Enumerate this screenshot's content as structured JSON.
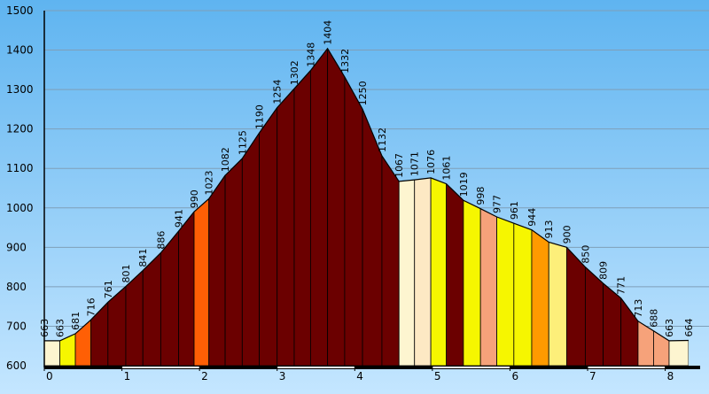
{
  "chart_data": {
    "type": "area",
    "title": "",
    "xlabel": "",
    "ylabel": "",
    "xlim": [
      0,
      8.45
    ],
    "ylim": [
      600,
      1500
    ],
    "y_ticks": [
      600,
      700,
      800,
      900,
      1000,
      1100,
      1200,
      1300,
      1400,
      1500
    ],
    "x_ticks": [
      0,
      1,
      2,
      3,
      4,
      5,
      6,
      7,
      8
    ],
    "grid": true,
    "points": [
      {
        "x": 0.0,
        "y": 663
      },
      {
        "x": 0.2,
        "y": 663
      },
      {
        "x": 0.4,
        "y": 681
      },
      {
        "x": 0.6,
        "y": 716
      },
      {
        "x": 0.82,
        "y": 761
      },
      {
        "x": 1.05,
        "y": 801
      },
      {
        "x": 1.27,
        "y": 841
      },
      {
        "x": 1.5,
        "y": 886
      },
      {
        "x": 1.73,
        "y": 941
      },
      {
        "x": 1.93,
        "y": 990
      },
      {
        "x": 2.12,
        "y": 1023
      },
      {
        "x": 2.33,
        "y": 1082
      },
      {
        "x": 2.55,
        "y": 1125
      },
      {
        "x": 2.77,
        "y": 1190
      },
      {
        "x": 3.0,
        "y": 1254
      },
      {
        "x": 3.22,
        "y": 1302
      },
      {
        "x": 3.43,
        "y": 1348
      },
      {
        "x": 3.65,
        "y": 1404
      },
      {
        "x": 3.87,
        "y": 1332
      },
      {
        "x": 4.1,
        "y": 1250
      },
      {
        "x": 4.35,
        "y": 1132
      },
      {
        "x": 4.57,
        "y": 1067
      },
      {
        "x": 4.77,
        "y": 1071
      },
      {
        "x": 4.98,
        "y": 1076
      },
      {
        "x": 5.18,
        "y": 1061
      },
      {
        "x": 5.4,
        "y": 1019
      },
      {
        "x": 5.62,
        "y": 998
      },
      {
        "x": 5.83,
        "y": 977
      },
      {
        "x": 6.05,
        "y": 961
      },
      {
        "x": 6.28,
        "y": 944
      },
      {
        "x": 6.5,
        "y": 913
      },
      {
        "x": 6.73,
        "y": 900
      },
      {
        "x": 6.97,
        "y": 850
      },
      {
        "x": 7.2,
        "y": 809
      },
      {
        "x": 7.43,
        "y": 771
      },
      {
        "x": 7.65,
        "y": 713
      },
      {
        "x": 7.85,
        "y": 688
      },
      {
        "x": 8.05,
        "y": 663
      },
      {
        "x": 8.3,
        "y": 664
      }
    ],
    "segments": [
      {
        "x0": 0.0,
        "x1": 0.2,
        "color": "#fdf5d0"
      },
      {
        "x0": 0.2,
        "x1": 0.4,
        "color": "#f6f600"
      },
      {
        "x0": 0.4,
        "x1": 0.6,
        "color": "#ff5f05"
      },
      {
        "x0": 0.6,
        "x1": 0.82,
        "color": "#6b0000"
      },
      {
        "x0": 0.82,
        "x1": 1.05,
        "color": "#6b0000"
      },
      {
        "x0": 1.05,
        "x1": 1.27,
        "color": "#6b0000"
      },
      {
        "x0": 1.27,
        "x1": 1.5,
        "color": "#6b0000"
      },
      {
        "x0": 1.5,
        "x1": 1.73,
        "color": "#6b0000"
      },
      {
        "x0": 1.73,
        "x1": 1.93,
        "color": "#6b0000"
      },
      {
        "x0": 1.93,
        "x1": 2.12,
        "color": "#ff5f05"
      },
      {
        "x0": 2.12,
        "x1": 2.33,
        "color": "#6b0000"
      },
      {
        "x0": 2.33,
        "x1": 2.55,
        "color": "#6b0000"
      },
      {
        "x0": 2.55,
        "x1": 2.77,
        "color": "#6b0000"
      },
      {
        "x0": 2.77,
        "x1": 3.0,
        "color": "#6b0000"
      },
      {
        "x0": 3.0,
        "x1": 3.22,
        "color": "#6b0000"
      },
      {
        "x0": 3.22,
        "x1": 3.43,
        "color": "#6b0000"
      },
      {
        "x0": 3.43,
        "x1": 3.65,
        "color": "#6b0000"
      },
      {
        "x0": 3.65,
        "x1": 3.87,
        "color": "#6b0000"
      },
      {
        "x0": 3.87,
        "x1": 4.1,
        "color": "#6b0000"
      },
      {
        "x0": 4.1,
        "x1": 4.35,
        "color": "#6b0000"
      },
      {
        "x0": 4.35,
        "x1": 4.57,
        "color": "#6b0000"
      },
      {
        "x0": 4.57,
        "x1": 4.77,
        "color": "#fdf5d0"
      },
      {
        "x0": 4.77,
        "x1": 4.98,
        "color": "#fde9c4"
      },
      {
        "x0": 4.98,
        "x1": 5.18,
        "color": "#f6f600"
      },
      {
        "x0": 5.18,
        "x1": 5.4,
        "color": "#6b0000"
      },
      {
        "x0": 5.4,
        "x1": 5.62,
        "color": "#f6f600"
      },
      {
        "x0": 5.62,
        "x1": 5.83,
        "color": "#f6a27a"
      },
      {
        "x0": 5.83,
        "x1": 6.05,
        "color": "#f6f600"
      },
      {
        "x0": 6.05,
        "x1": 6.28,
        "color": "#f6f600"
      },
      {
        "x0": 6.28,
        "x1": 6.5,
        "color": "#ff9a00"
      },
      {
        "x0": 6.5,
        "x1": 6.73,
        "color": "#fdef7a"
      },
      {
        "x0": 6.73,
        "x1": 6.97,
        "color": "#6b0000"
      },
      {
        "x0": 6.97,
        "x1": 7.2,
        "color": "#6b0000"
      },
      {
        "x0": 7.2,
        "x1": 7.43,
        "color": "#6b0000"
      },
      {
        "x0": 7.43,
        "x1": 7.65,
        "color": "#6b0000"
      },
      {
        "x0": 7.65,
        "x1": 7.85,
        "color": "#f6a27a"
      },
      {
        "x0": 7.85,
        "x1": 8.05,
        "color": "#f6a27a"
      },
      {
        "x0": 8.05,
        "x1": 8.3,
        "color": "#fdf5d0"
      }
    ],
    "colors": {
      "sky_top": "#5fb4f0",
      "sky_bottom": "#c4e6ff",
      "gridline": "#7f9fb8",
      "outline": "#000000"
    }
  }
}
